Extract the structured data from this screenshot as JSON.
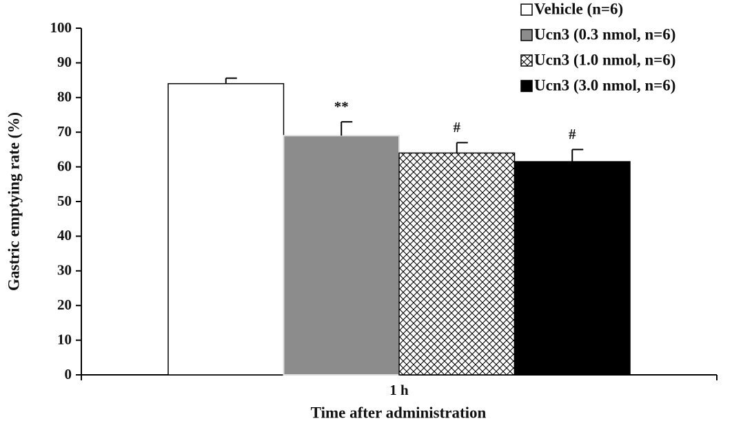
{
  "chart_data": {
    "type": "bar",
    "xlabel": "Time after administration",
    "ylabel": "Gastric emptying rate (%)",
    "categories": [
      "1 h"
    ],
    "series": [
      {
        "name": "Vehicle (n=6)",
        "color": "#ffffff",
        "values": [
          84
        ],
        "errors": [
          1.6
        ]
      },
      {
        "name": "Ucn3 (0.3 nmol, n=6)",
        "color": "#8c8c8c",
        "values": [
          69
        ],
        "errors": [
          4
        ],
        "annotation": "**"
      },
      {
        "name": "Ucn3 (1.0 nmol, n=6)",
        "color": "#ffffff",
        "hatch": "crosshatch",
        "values": [
          64
        ],
        "errors": [
          3
        ],
        "annotation": "#"
      },
      {
        "name": "Ucn3 (3.0 nmol, n=6)",
        "color": "#000000",
        "values": [
          61.5
        ],
        "errors": [
          3.5
        ],
        "annotation": "#"
      }
    ],
    "ylim": [
      0,
      100
    ],
    "yticks": [
      0,
      10,
      20,
      30,
      40,
      50,
      60,
      70,
      80,
      90,
      100
    ],
    "legend": "top-right"
  }
}
